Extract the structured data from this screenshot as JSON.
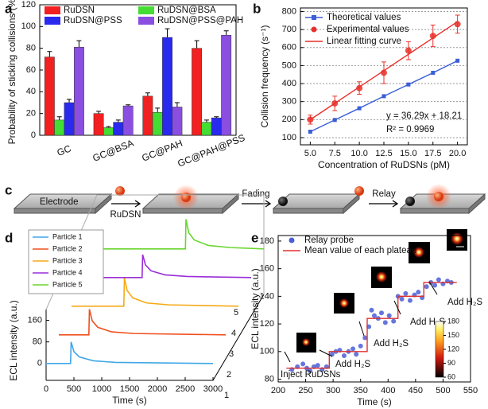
{
  "chart_data": [
    {
      "panel": "a",
      "type": "bar",
      "ylabel": "Probability of sticking collisions (%)",
      "categories": [
        "GC",
        "GC@BSA",
        "GC@PAH",
        "GC@PAH@PSS"
      ],
      "series": [
        {
          "name": "RuDSN",
          "color": "#f22020",
          "values": [
            72,
            20,
            36,
            80
          ],
          "errors": [
            5,
            2,
            3,
            7
          ]
        },
        {
          "name": "RuDSN@BSA",
          "color": "#44dd33",
          "values": [
            14,
            7,
            21,
            12
          ],
          "errors": [
            3,
            1,
            4,
            2
          ]
        },
        {
          "name": "RuDSN@PSS",
          "color": "#2a2aee",
          "values": [
            30,
            12,
            90,
            16
          ],
          "errors": [
            3,
            2,
            8,
            1
          ]
        },
        {
          "name": "RuDSN@PSS@PAH",
          "color": "#8a4ee0",
          "values": [
            81,
            27,
            26,
            92
          ],
          "errors": [
            6,
            1,
            4,
            4
          ]
        }
      ],
      "ylim": [
        0,
        120
      ],
      "yticks": [
        0,
        20,
        40,
        60,
        80,
        100,
        120
      ]
    },
    {
      "panel": "b",
      "type": "line",
      "xlabel": "Concentration of RuDSNs (pM)",
      "ylabel": "Collision frequency (s⁻¹)",
      "x": [
        5,
        7.5,
        10,
        12.5,
        15,
        17.5,
        20
      ],
      "series": [
        {
          "name": "Theoretical values",
          "color": "#3a5fd8",
          "line": true,
          "marker": "square",
          "values": [
            133,
            198,
            263,
            330,
            395,
            460,
            527
          ]
        },
        {
          "name": "Experimental values",
          "color": "#e8302a",
          "line": false,
          "marker": "circle",
          "values": [
            200,
            290,
            375,
            460,
            583,
            665,
            730
          ],
          "errors": [
            25,
            40,
            35,
            60,
            50,
            60,
            50
          ]
        },
        {
          "name": "Linear fitting curve",
          "color": "#e8302a",
          "line": true,
          "marker": null,
          "values": [
            199.66,
            290.39,
            381.11,
            471.84,
            562.56,
            653.29,
            744.01
          ]
        }
      ],
      "annotations": [
        "y = 36.29x + 18.21",
        "R² = 0.9969"
      ],
      "xlim": [
        4,
        21
      ],
      "xticks": [
        {
          "value": 5,
          "label": "5.0"
        },
        7.5,
        {
          "value": 10,
          "label": "10.0"
        },
        12.5,
        {
          "value": 15,
          "label": "15.0"
        },
        17.5,
        {
          "value": 20,
          "label": "20.0"
        }
      ],
      "ylim": [
        60,
        820
      ],
      "yticks": [
        100,
        200,
        300,
        400,
        500,
        600,
        700,
        800
      ],
      "grid": true
    },
    {
      "panel": "d",
      "type": "waterfall",
      "xlabel": "Time (s)",
      "ylabel": "ECL intensity (a.u.)",
      "series": [
        {
          "name": "Particle 1",
          "color": "#3fa7e6",
          "x": [
            0,
            440,
            450,
            500,
            600,
            850,
            1250,
            3000
          ],
          "values": [
            0,
            0,
            80,
            44,
            24,
            10,
            4,
            0
          ]
        },
        {
          "name": "Particle 2",
          "color": "#f0501e",
          "x": [
            0,
            540,
            550,
            600,
            700,
            950,
            1350,
            3000
          ],
          "values": [
            0,
            0,
            95,
            52,
            28,
            11,
            5,
            0
          ]
        },
        {
          "name": "Particle 3",
          "color": "#f5aa18",
          "x": [
            0,
            940,
            950,
            1000,
            1100,
            1350,
            1750,
            3000
          ],
          "values": [
            0,
            0,
            105,
            58,
            31,
            12,
            5,
            0
          ]
        },
        {
          "name": "Particle 4",
          "color": "#9a2ed8",
          "x": [
            0,
            1040,
            1050,
            1100,
            1200,
            1450,
            1850,
            3000
          ],
          "values": [
            0,
            0,
            85,
            47,
            25,
            10,
            4,
            0
          ]
        },
        {
          "name": "Particle 5",
          "color": "#6ad62e",
          "x": [
            0,
            1590,
            1600,
            1650,
            1750,
            2000,
            2400,
            3000
          ],
          "values": [
            0,
            0,
            110,
            60,
            33,
            13,
            5,
            0
          ]
        }
      ],
      "depth_labels": [
        "1",
        "2",
        "3",
        "4",
        "5"
      ],
      "xlim": [
        0,
        3000
      ],
      "xticks": [
        0,
        500,
        1000,
        1500,
        2000,
        2500,
        3000
      ],
      "ylim": [
        -30,
        200
      ],
      "yticks": [
        0,
        80,
        160
      ]
    },
    {
      "panel": "e",
      "type": "scatter",
      "xlabel": "Time (s)",
      "ylabel": "ECL intensity (a.u.)",
      "series": [
        {
          "name": "Relay probe",
          "color": "#4a5fd6",
          "line": false,
          "marker": "circle",
          "x": [
            225,
            235,
            245,
            252,
            258,
            265,
            272,
            280,
            288,
            298,
            305,
            312,
            320,
            328,
            336,
            342,
            350,
            358,
            365,
            370,
            375,
            382,
            388,
            395,
            402,
            410,
            418,
            425,
            432,
            440,
            448,
            455,
            462,
            470,
            478,
            485,
            492,
            500,
            508,
            515
          ],
          "values": [
            87,
            89,
            91,
            88,
            86,
            89,
            90,
            87,
            89,
            98,
            100,
            101,
            97,
            100,
            102,
            98,
            104,
            110,
            118,
            130,
            126,
            124,
            128,
            121,
            126,
            122,
            140,
            138,
            142,
            137,
            141,
            143,
            139,
            147,
            150,
            148,
            152,
            149,
            151,
            150
          ]
        },
        {
          "name": "Mean value of each plateau",
          "color": "#e03030",
          "line": true,
          "marker": null,
          "x": [
            215,
            293,
            293,
            362,
            362,
            418,
            418,
            465,
            465,
            525
          ],
          "values": [
            88,
            88,
            100,
            100,
            124,
            124,
            140,
            140,
            150,
            150
          ]
        }
      ],
      "annotations": [
        "Inject RuDSNs",
        "Add H₂S",
        "Add H₂S",
        "Add H₂S",
        "Add H₂S"
      ],
      "colorbar": {
        "lim": [
          60,
          180
        ],
        "ticks": [
          60,
          90,
          120,
          150,
          180
        ]
      },
      "xlim": [
        200,
        550
      ],
      "xticks": [
        200,
        250,
        300,
        350,
        400,
        450,
        500,
        550
      ],
      "ylim": [
        78,
        184
      ],
      "yticks": [
        80,
        100,
        120,
        140,
        160,
        180
      ]
    }
  ],
  "diagram": {
    "panel": "c",
    "steps": [
      "Electrode",
      "RuDSN",
      "Fading",
      "Relay"
    ]
  }
}
